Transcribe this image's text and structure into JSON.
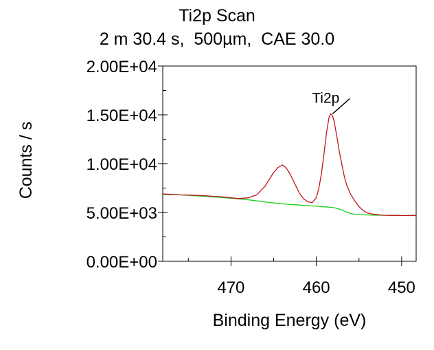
{
  "chart_data": {
    "type": "line",
    "title": "Ti2p Scan",
    "subtitle": "2 m 30.4 s,  500µm,  CAE 30.0",
    "xlabel": "Binding Energy (eV)",
    "ylabel": "Counts / s",
    "xlim": [
      478,
      448.3
    ],
    "x_reversed": true,
    "ylim": [
      0,
      20000
    ],
    "xticks": [
      470,
      460,
      450
    ],
    "xtick_labels": [
      "470",
      "460",
      "450"
    ],
    "yticks": [
      0,
      5000,
      10000,
      15000,
      20000
    ],
    "ytick_labels": [
      "0.00E+00",
      "5.00E+03",
      "1.00E+04",
      "1.50E+04",
      "2.00E+04"
    ],
    "grid": false,
    "legend": "none",
    "colors": {
      "spectrum": "#c0141c",
      "background": "#14d014",
      "axis": "#000000"
    },
    "series": [
      {
        "x": [
          478,
          477,
          476,
          475,
          474,
          473,
          472,
          471,
          470,
          469,
          468,
          467,
          466,
          465.5,
          465,
          464.5,
          464,
          463.7,
          463.4,
          463,
          462.5,
          462,
          461.5,
          461,
          460.5,
          460,
          459.7,
          459.4,
          459.1,
          458.8,
          458.5,
          458.3,
          458.1,
          457.9,
          457.7,
          457.5,
          457.3,
          457,
          456.7,
          456.4,
          456,
          455.5,
          455,
          454.5,
          454,
          453.5,
          453,
          452.5,
          452,
          451,
          450,
          449,
          448.3
        ],
        "y": [
          6900,
          6850,
          6800,
          6780,
          6750,
          6720,
          6650,
          6600,
          6500,
          6420,
          6500,
          6800,
          7700,
          8400,
          9100,
          9600,
          9850,
          9700,
          9400,
          8800,
          7900,
          7000,
          6400,
          6100,
          6000,
          6500,
          7500,
          9000,
          11000,
          13200,
          14800,
          15100,
          14900,
          14300,
          13300,
          12300,
          11200,
          9900,
          8600,
          7700,
          6900,
          6200,
          5600,
          5200,
          4950,
          4850,
          4800,
          4750,
          4720,
          4700,
          4680,
          4690,
          4700
        ]
      },
      {
        "x": [
          478,
          476,
          474,
          472,
          470,
          469,
          468,
          467.5,
          467,
          466.5,
          466,
          465.5,
          465,
          464.5,
          464,
          463,
          462,
          461,
          460,
          459,
          458.5,
          458,
          457.5,
          457,
          456.5,
          456,
          455.5,
          455,
          454.5,
          454,
          453,
          452,
          451,
          450,
          449,
          448.3
        ],
        "y": [
          6850,
          6800,
          6700,
          6600,
          6450,
          6380,
          6300,
          6250,
          6200,
          6150,
          6080,
          6020,
          5980,
          5930,
          5880,
          5820,
          5760,
          5700,
          5640,
          5580,
          5550,
          5500,
          5400,
          5250,
          5050,
          4900,
          4820,
          4780,
          4760,
          4750,
          4720,
          4710,
          4700,
          4690,
          4680,
          4680
        ]
      }
    ],
    "annotations": [
      {
        "text": "Ti2p",
        "x": 458.1,
        "y": 15100
      }
    ]
  }
}
